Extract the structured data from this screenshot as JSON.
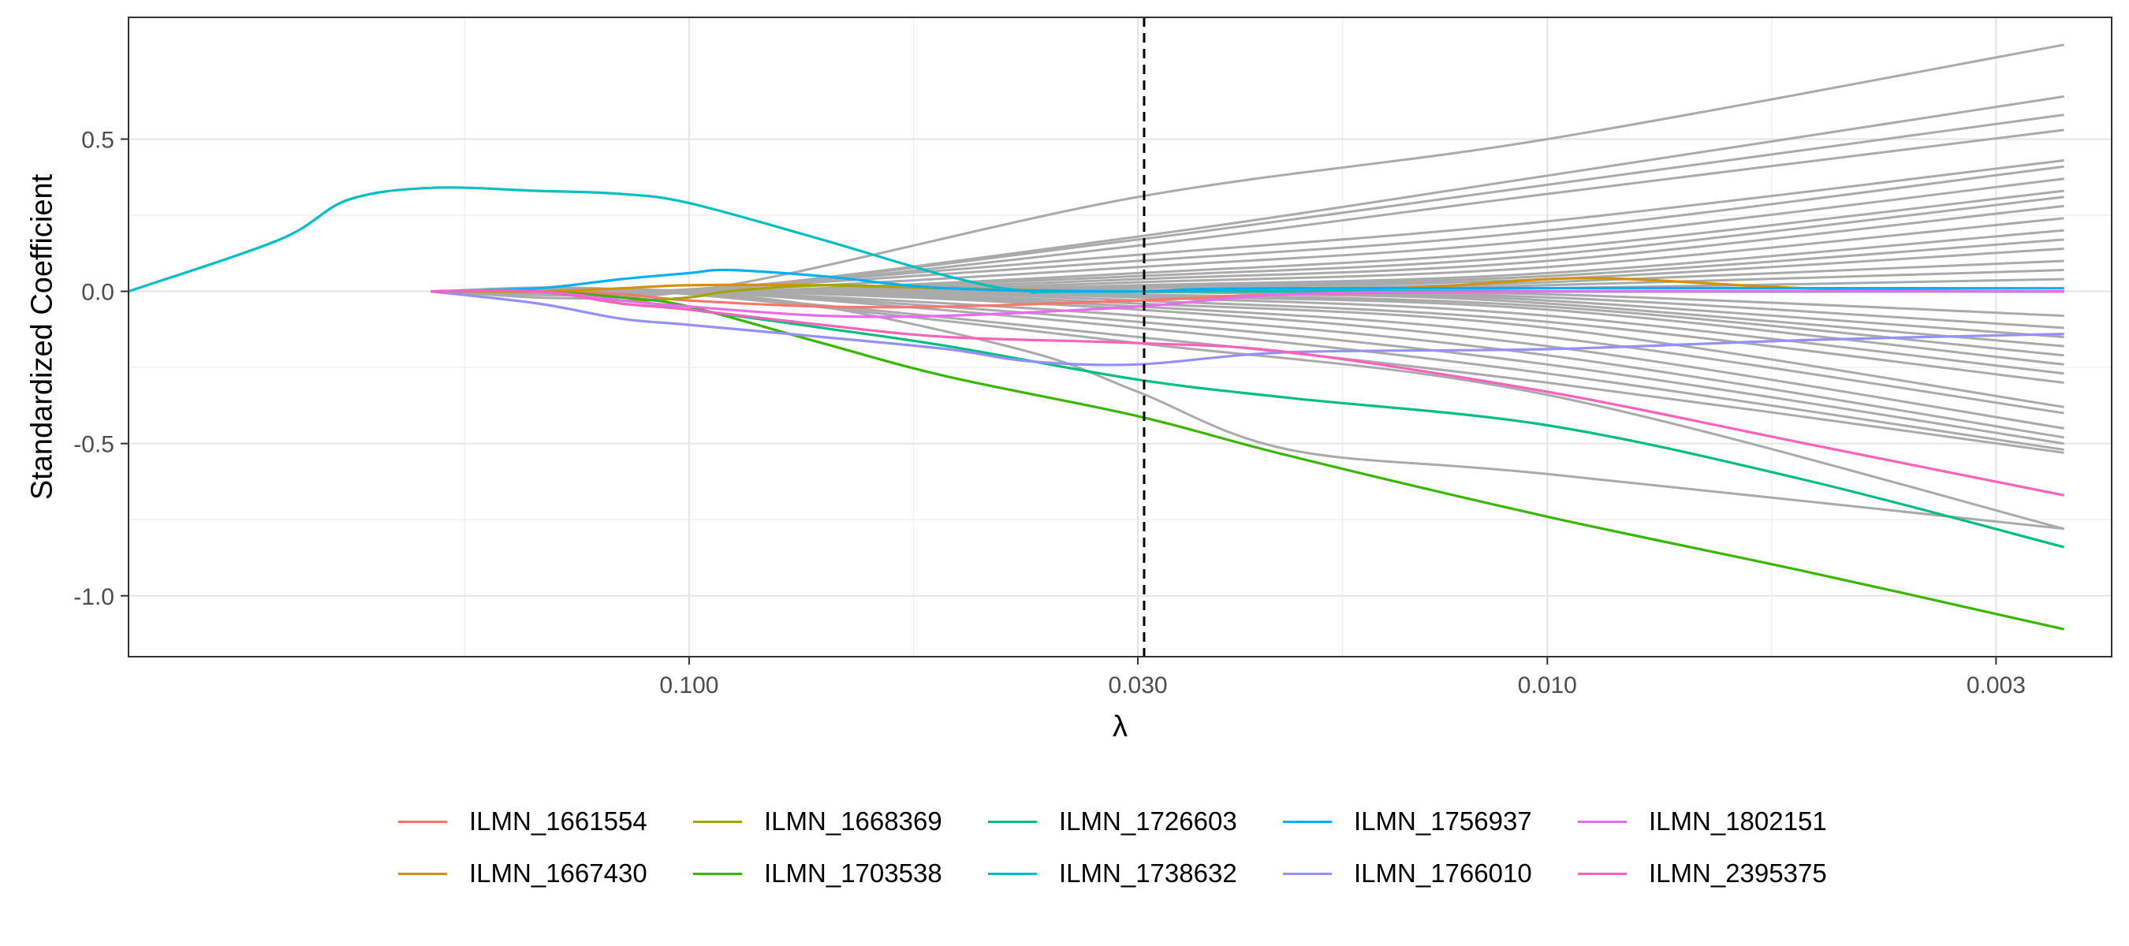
{
  "chart_data": {
    "type": "line",
    "title": "",
    "xlabel": "λ",
    "ylabel": "Standardized Coefficient",
    "x_scale": "log10-reversed",
    "xlim": [
      0.45,
      0.0022
    ],
    "ylim": [
      -1.2,
      0.9
    ],
    "x_ticks": [
      0.1,
      0.03,
      0.01,
      0.003
    ],
    "x_tick_labels": [
      "0.100",
      "0.030",
      "0.010",
      "0.003"
    ],
    "y_ticks": [
      0.5,
      0.0,
      -0.5,
      -1.0
    ],
    "y_tick_labels": [
      "0.5",
      "0.0",
      "-0.5",
      "-1.0"
    ],
    "vline": {
      "x": 0.0295,
      "style": "dashed",
      "color": "#000000"
    },
    "grid": true,
    "legend_position": "bottom",
    "background_color": "#aaaaaa",
    "background_series": [
      [
        [
          0.1,
          0
        ],
        [
          0.03,
          0.31
        ],
        [
          0.01,
          0.5
        ],
        [
          0.0025,
          0.81
        ]
      ],
      [
        [
          0.1,
          0
        ],
        [
          0.03,
          0.18
        ],
        [
          0.01,
          0.38
        ],
        [
          0.0025,
          0.64
        ]
      ],
      [
        [
          0.1,
          0
        ],
        [
          0.03,
          0.17
        ],
        [
          0.01,
          0.35
        ],
        [
          0.0025,
          0.58
        ]
      ],
      [
        [
          0.1,
          0
        ],
        [
          0.03,
          0.15
        ],
        [
          0.01,
          0.32
        ],
        [
          0.0025,
          0.53
        ]
      ],
      [
        [
          0.11,
          0
        ],
        [
          0.03,
          0.12
        ],
        [
          0.01,
          0.23
        ],
        [
          0.0025,
          0.43
        ]
      ],
      [
        [
          0.11,
          0
        ],
        [
          0.03,
          0.1
        ],
        [
          0.01,
          0.2
        ],
        [
          0.0025,
          0.41
        ]
      ],
      [
        [
          0.1,
          0
        ],
        [
          0.03,
          0.08
        ],
        [
          0.01,
          0.17
        ],
        [
          0.0025,
          0.37
        ]
      ],
      [
        [
          0.09,
          0
        ],
        [
          0.03,
          0.06
        ],
        [
          0.01,
          0.14
        ],
        [
          0.0025,
          0.33
        ]
      ],
      [
        [
          0.09,
          0
        ],
        [
          0.03,
          0.05
        ],
        [
          0.01,
          0.12
        ],
        [
          0.0025,
          0.31
        ]
      ],
      [
        [
          0.08,
          0
        ],
        [
          0.03,
          0.04
        ],
        [
          0.01,
          0.1
        ],
        [
          0.0025,
          0.28
        ]
      ],
      [
        [
          0.07,
          0
        ],
        [
          0.03,
          0.03
        ],
        [
          0.01,
          0.08
        ],
        [
          0.0025,
          0.24
        ]
      ],
      [
        [
          0.07,
          0
        ],
        [
          0.03,
          0.02
        ],
        [
          0.01,
          0.06
        ],
        [
          0.0025,
          0.2
        ]
      ],
      [
        [
          0.06,
          0
        ],
        [
          0.03,
          0.015
        ],
        [
          0.01,
          0.05
        ],
        [
          0.0025,
          0.17
        ]
      ],
      [
        [
          0.05,
          0
        ],
        [
          0.03,
          0.01
        ],
        [
          0.01,
          0.04
        ],
        [
          0.0025,
          0.14
        ]
      ],
      [
        [
          0.04,
          0
        ],
        [
          0.02,
          0.01
        ],
        [
          0.01,
          0.03
        ],
        [
          0.0025,
          0.1
        ]
      ],
      [
        [
          0.035,
          0
        ],
        [
          0.02,
          0.005
        ],
        [
          0.01,
          0.02
        ],
        [
          0.0025,
          0.07
        ]
      ],
      [
        [
          0.03,
          0
        ],
        [
          0.01,
          0.01
        ],
        [
          0.0025,
          0.04
        ]
      ],
      [
        [
          0.11,
          0
        ],
        [
          0.03,
          -0.17
        ],
        [
          0.01,
          -0.34
        ],
        [
          0.0025,
          -0.78
        ]
      ],
      [
        [
          0.11,
          0
        ],
        [
          0.03,
          -0.15
        ],
        [
          0.01,
          -0.3
        ],
        [
          0.0025,
          -0.53
        ]
      ],
      [
        [
          0.1,
          0
        ],
        [
          0.03,
          -0.12
        ],
        [
          0.01,
          -0.27
        ],
        [
          0.0025,
          -0.52
        ]
      ],
      [
        [
          0.1,
          0
        ],
        [
          0.03,
          -0.1
        ],
        [
          0.01,
          -0.24
        ],
        [
          0.0025,
          -0.5
        ]
      ],
      [
        [
          0.1,
          0
        ],
        [
          0.03,
          -0.08
        ],
        [
          0.01,
          -0.21
        ],
        [
          0.0025,
          -0.48
        ]
      ],
      [
        [
          0.09,
          0
        ],
        [
          0.03,
          -0.06
        ],
        [
          0.01,
          -0.18
        ],
        [
          0.0025,
          -0.45
        ]
      ],
      [
        [
          0.09,
          0
        ],
        [
          0.03,
          -0.05
        ],
        [
          0.01,
          -0.15
        ],
        [
          0.0025,
          -0.4
        ]
      ],
      [
        [
          0.08,
          0
        ],
        [
          0.03,
          -0.04
        ],
        [
          0.01,
          -0.12
        ],
        [
          0.0025,
          -0.38
        ]
      ],
      [
        [
          0.07,
          0
        ],
        [
          0.03,
          -0.03
        ],
        [
          0.01,
          -0.1
        ],
        [
          0.0025,
          -0.3
        ]
      ],
      [
        [
          0.07,
          0
        ],
        [
          0.03,
          -0.02
        ],
        [
          0.01,
          -0.08
        ],
        [
          0.0025,
          -0.27
        ]
      ],
      [
        [
          0.06,
          0
        ],
        [
          0.03,
          -0.015
        ],
        [
          0.01,
          -0.06
        ],
        [
          0.0025,
          -0.24
        ]
      ],
      [
        [
          0.05,
          0
        ],
        [
          0.03,
          -0.01
        ],
        [
          0.01,
          -0.05
        ],
        [
          0.0025,
          -0.21
        ]
      ],
      [
        [
          0.04,
          0
        ],
        [
          0.02,
          -0.01
        ],
        [
          0.01,
          -0.04
        ],
        [
          0.0025,
          -0.18
        ]
      ],
      [
        [
          0.035,
          0
        ],
        [
          0.02,
          -0.005
        ],
        [
          0.01,
          -0.03
        ],
        [
          0.0025,
          -0.15
        ]
      ],
      [
        [
          0.03,
          0
        ],
        [
          0.01,
          -0.02
        ],
        [
          0.0025,
          -0.12
        ]
      ],
      [
        [
          0.03,
          0
        ],
        [
          0.01,
          -0.01
        ],
        [
          0.0025,
          -0.08
        ]
      ],
      [
        [
          0.11,
          0
        ],
        [
          0.07,
          -0.05
        ],
        [
          0.04,
          -0.2
        ],
        [
          0.03,
          -0.33
        ],
        [
          0.02,
          -0.52
        ],
        [
          0.01,
          -0.6
        ],
        [
          0.0025,
          -0.78
        ]
      ]
    ],
    "series": [
      {
        "name": "ILMN_1661554",
        "color": "#F8766D",
        "points": [
          [
            0.2,
            0
          ],
          [
            0.15,
            0
          ],
          [
            0.12,
            -0.01
          ],
          [
            0.1,
            -0.03
          ],
          [
            0.07,
            -0.05
          ],
          [
            0.05,
            -0.05
          ],
          [
            0.03,
            -0.03
          ],
          [
            0.02,
            -0.01
          ],
          [
            0.01,
            0
          ],
          [
            0.0025,
            0
          ]
        ]
      },
      {
        "name": "ILMN_1667430",
        "color": "#D89000",
        "points": [
          [
            0.2,
            0
          ],
          [
            0.15,
            0
          ],
          [
            0.12,
            0.01
          ],
          [
            0.1,
            0.02
          ],
          [
            0.07,
            0.02
          ],
          [
            0.05,
            0.01
          ],
          [
            0.03,
            0
          ],
          [
            0.015,
            0.01
          ],
          [
            0.01,
            0.04
          ],
          [
            0.008,
            0.04
          ],
          [
            0.005,
            0.01
          ],
          [
            0.003,
            0
          ],
          [
            0.0025,
            0
          ]
        ]
      },
      {
        "name": "ILMN_1668369",
        "color": "#A3A500",
        "points": [
          [
            0.2,
            0
          ],
          [
            0.15,
            0
          ],
          [
            0.12,
            -0.03
          ],
          [
            0.1,
            -0.02
          ],
          [
            0.09,
            0
          ],
          [
            0.07,
            0.02
          ],
          [
            0.05,
            0.01
          ],
          [
            0.03,
            0
          ],
          [
            0.0025,
            0
          ]
        ]
      },
      {
        "name": "ILMN_1703538",
        "color": "#39B600",
        "points": [
          [
            0.2,
            0
          ],
          [
            0.15,
            0
          ],
          [
            0.12,
            -0.02
          ],
          [
            0.1,
            -0.05
          ],
          [
            0.07,
            -0.17
          ],
          [
            0.05,
            -0.28
          ],
          [
            0.03,
            -0.41
          ],
          [
            0.02,
            -0.54
          ],
          [
            0.01,
            -0.74
          ],
          [
            0.005,
            -0.92
          ],
          [
            0.0025,
            -1.11
          ]
        ]
      },
      {
        "name": "ILMN_1726603",
        "color": "#00BF7D",
        "points": [
          [
            0.2,
            0
          ],
          [
            0.15,
            0
          ],
          [
            0.12,
            -0.04
          ],
          [
            0.1,
            -0.06
          ],
          [
            0.07,
            -0.12
          ],
          [
            0.05,
            -0.18
          ],
          [
            0.03,
            -0.29
          ],
          [
            0.02,
            -0.35
          ],
          [
            0.01,
            -0.44
          ],
          [
            0.005,
            -0.62
          ],
          [
            0.0025,
            -0.84
          ]
        ]
      },
      {
        "name": "ILMN_1738632",
        "color": "#00BFC4",
        "points": [
          [
            0.45,
            0
          ],
          [
            0.3,
            0.17
          ],
          [
            0.25,
            0.3
          ],
          [
            0.2,
            0.34
          ],
          [
            0.15,
            0.33
          ],
          [
            0.12,
            0.32
          ],
          [
            0.1,
            0.29
          ],
          [
            0.07,
            0.17
          ],
          [
            0.05,
            0.05
          ],
          [
            0.04,
            0
          ],
          [
            0.03,
            0
          ],
          [
            0.0025,
            0
          ]
        ]
      },
      {
        "name": "ILMN_1756937",
        "color": "#00B0F6",
        "points": [
          [
            0.2,
            0
          ],
          [
            0.15,
            0.01
          ],
          [
            0.12,
            0.04
          ],
          [
            0.1,
            0.06
          ],
          [
            0.09,
            0.07
          ],
          [
            0.07,
            0.05
          ],
          [
            0.05,
            0.01
          ],
          [
            0.03,
            0
          ],
          [
            0.02,
            0.01
          ],
          [
            0.0025,
            0.01
          ]
        ]
      },
      {
        "name": "ILMN_1766010",
        "color": "#9590FF",
        "points": [
          [
            0.2,
            0
          ],
          [
            0.15,
            -0.04
          ],
          [
            0.12,
            -0.09
          ],
          [
            0.1,
            -0.11
          ],
          [
            0.07,
            -0.15
          ],
          [
            0.05,
            -0.19
          ],
          [
            0.04,
            -0.23
          ],
          [
            0.03,
            -0.24
          ],
          [
            0.02,
            -0.2
          ],
          [
            0.01,
            -0.19
          ],
          [
            0.005,
            -0.16
          ],
          [
            0.0025,
            -0.14
          ]
        ]
      },
      {
        "name": "ILMN_1802151",
        "color": "#E76BF3",
        "points": [
          [
            0.2,
            0
          ],
          [
            0.15,
            0
          ],
          [
            0.12,
            -0.03
          ],
          [
            0.1,
            -0.05
          ],
          [
            0.07,
            -0.08
          ],
          [
            0.05,
            -0.08
          ],
          [
            0.03,
            -0.05
          ],
          [
            0.02,
            -0.01
          ],
          [
            0.01,
            0
          ],
          [
            0.0025,
            0
          ]
        ]
      },
      {
        "name": "ILMN_2395375",
        "color": "#FF62BC",
        "points": [
          [
            0.2,
            0
          ],
          [
            0.15,
            0
          ],
          [
            0.12,
            -0.04
          ],
          [
            0.1,
            -0.06
          ],
          [
            0.07,
            -0.11
          ],
          [
            0.05,
            -0.15
          ],
          [
            0.03,
            -0.17
          ],
          [
            0.02,
            -0.2
          ],
          [
            0.01,
            -0.33
          ],
          [
            0.005,
            -0.5
          ],
          [
            0.0025,
            -0.67
          ]
        ]
      }
    ]
  }
}
